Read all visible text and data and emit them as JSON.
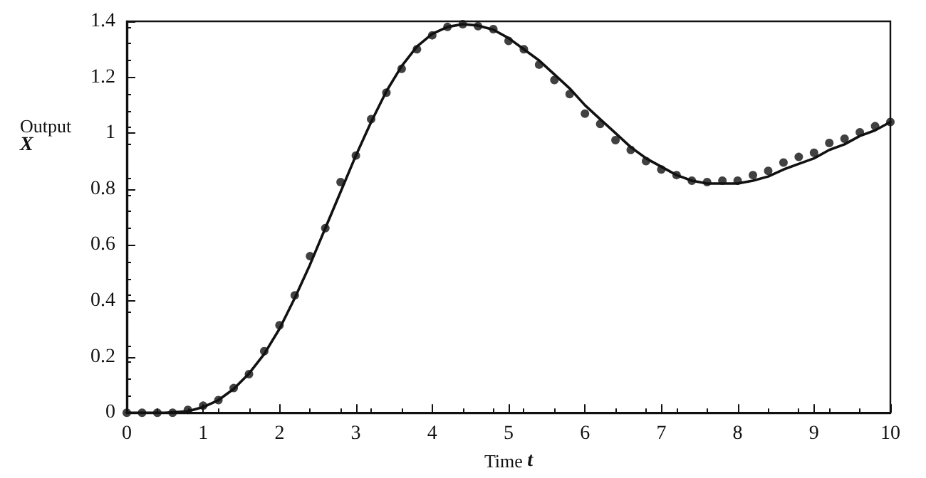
{
  "chart_data": {
    "type": "line",
    "xlabel": "Time t",
    "ylabel": "Output X",
    "xlim": [
      0,
      10
    ],
    "ylim": [
      0,
      1.4
    ],
    "xticks": [
      0,
      1,
      2,
      3,
      4,
      5,
      6,
      7,
      8,
      9,
      10
    ],
    "yticks": [
      0,
      0.2,
      0.4,
      0.6,
      0.8,
      1,
      1.2,
      1.4
    ],
    "grid": false,
    "series": [
      {
        "color": "#111111",
        "marker": "none",
        "line_style": "solid",
        "x": [
          0,
          0.5,
          0.8,
          1,
          1.2,
          1.4,
          1.6,
          1.8,
          2,
          2.2,
          2.4,
          2.6,
          2.8,
          3,
          3.2,
          3.4,
          3.6,
          3.8,
          4,
          4.2,
          4.4,
          4.6,
          4.8,
          5,
          5.2,
          5.4,
          5.6,
          5.8,
          6,
          6.2,
          6.4,
          6.6,
          6.8,
          7,
          7.2,
          7.4,
          7.6,
          7.8,
          8,
          8.2,
          8.4,
          8.6,
          8.8,
          9,
          9.2,
          9.4,
          9.6,
          9.8,
          10
        ],
        "values": [
          0,
          0,
          0.005,
          0.02,
          0.045,
          0.085,
          0.14,
          0.21,
          0.3,
          0.41,
          0.53,
          0.66,
          0.79,
          0.92,
          1.04,
          1.15,
          1.24,
          1.31,
          1.355,
          1.38,
          1.39,
          1.385,
          1.37,
          1.34,
          1.3,
          1.26,
          1.21,
          1.16,
          1.1,
          1.05,
          1,
          0.95,
          0.91,
          0.88,
          0.85,
          0.83,
          0.82,
          0.82,
          0.82,
          0.83,
          0.845,
          0.87,
          0.89,
          0.91,
          0.94,
          0.96,
          0.99,
          1.01,
          1.04
        ]
      },
      {
        "type": "scatter",
        "color": "#111111",
        "marker": "circle",
        "x": [
          0,
          0.2,
          0.4,
          0.6,
          0.8,
          1,
          1.2,
          1.4,
          1.6,
          1.8,
          2,
          2.2,
          2.4,
          2.6,
          2.8,
          3,
          3.2,
          3.4,
          3.6,
          3.8,
          4,
          4.2,
          4.4,
          4.6,
          4.8,
          5,
          5.2,
          5.4,
          5.6,
          5.8,
          6,
          6.2,
          6.4,
          6.6,
          6.8,
          7,
          7.2,
          7.4,
          7.6,
          7.8,
          8,
          8.2,
          8.4,
          8.6,
          8.8,
          9,
          9.2,
          9.4,
          9.6,
          9.8,
          10
        ],
        "values": [
          0,
          0,
          0,
          0,
          0.01,
          0.025,
          0.045,
          0.088,
          0.138,
          0.22,
          0.313,
          0.42,
          0.56,
          0.66,
          0.825,
          0.92,
          1.05,
          1.145,
          1.23,
          1.3,
          1.35,
          1.38,
          1.39,
          1.383,
          1.372,
          1.33,
          1.3,
          1.245,
          1.19,
          1.14,
          1.07,
          1.033,
          0.975,
          0.94,
          0.9,
          0.87,
          0.85,
          0.83,
          0.825,
          0.83,
          0.83,
          0.85,
          0.865,
          0.895,
          0.915,
          0.93,
          0.965,
          0.98,
          1.003,
          1.025,
          1.04
        ]
      }
    ]
  }
}
